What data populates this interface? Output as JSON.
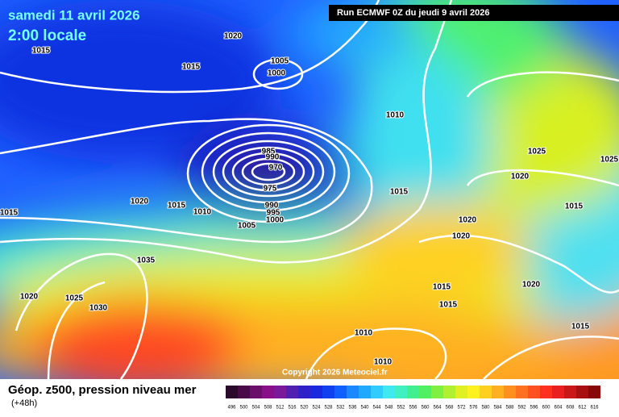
{
  "map": {
    "title": "samedi 11 avril 2026",
    "subtitle": "2:00 locale",
    "run": "Run ECMWF 0Z du jeudi 9 avril 2026",
    "copyright": "Copyright 2026 Meteociel.fr",
    "caption": "Géop. z500, pression niveau mer",
    "lead": "(+48h)",
    "isobar_labels": [
      "1020",
      "1015",
      "1015",
      "1005",
      "1000",
      "1010",
      "1025",
      "1025",
      "985",
      "990",
      "970",
      "975",
      "1020",
      "1020",
      "1015",
      "1010",
      "990",
      "995",
      "1000",
      "1005",
      "1015",
      "1015",
      "1015",
      "1020",
      "1020",
      "1035",
      "1015",
      "1020",
      "1020",
      "1025",
      "1030",
      "1015",
      "1010",
      "1015",
      "1010"
    ],
    "legend": {
      "labels": [
        "496",
        "500",
        "504",
        "508",
        "512",
        "516",
        "520",
        "524",
        "528",
        "532",
        "536",
        "540",
        "544",
        "548",
        "552",
        "556",
        "560",
        "564",
        "568",
        "572",
        "576",
        "580",
        "584",
        "588",
        "592",
        "596",
        "600",
        "604",
        "608",
        "612",
        "616"
      ],
      "colors": [
        "#2a0a2a",
        "#4a0a4a",
        "#6a106a",
        "#8a108a",
        "#7a1a9a",
        "#5020b0",
        "#3020c8",
        "#1a28e0",
        "#1040f0",
        "#1060ff",
        "#1a88ff",
        "#20aaff",
        "#30ccff",
        "#40e8f0",
        "#40f0c0",
        "#40f090",
        "#50f060",
        "#80f040",
        "#b0f030",
        "#e0f020",
        "#fff020",
        "#ffd020",
        "#ffb020",
        "#ff9020",
        "#ff7020",
        "#ff5020",
        "#ff3020",
        "#e82020",
        "#c81818",
        "#a81010",
        "#880808"
      ]
    }
  }
}
